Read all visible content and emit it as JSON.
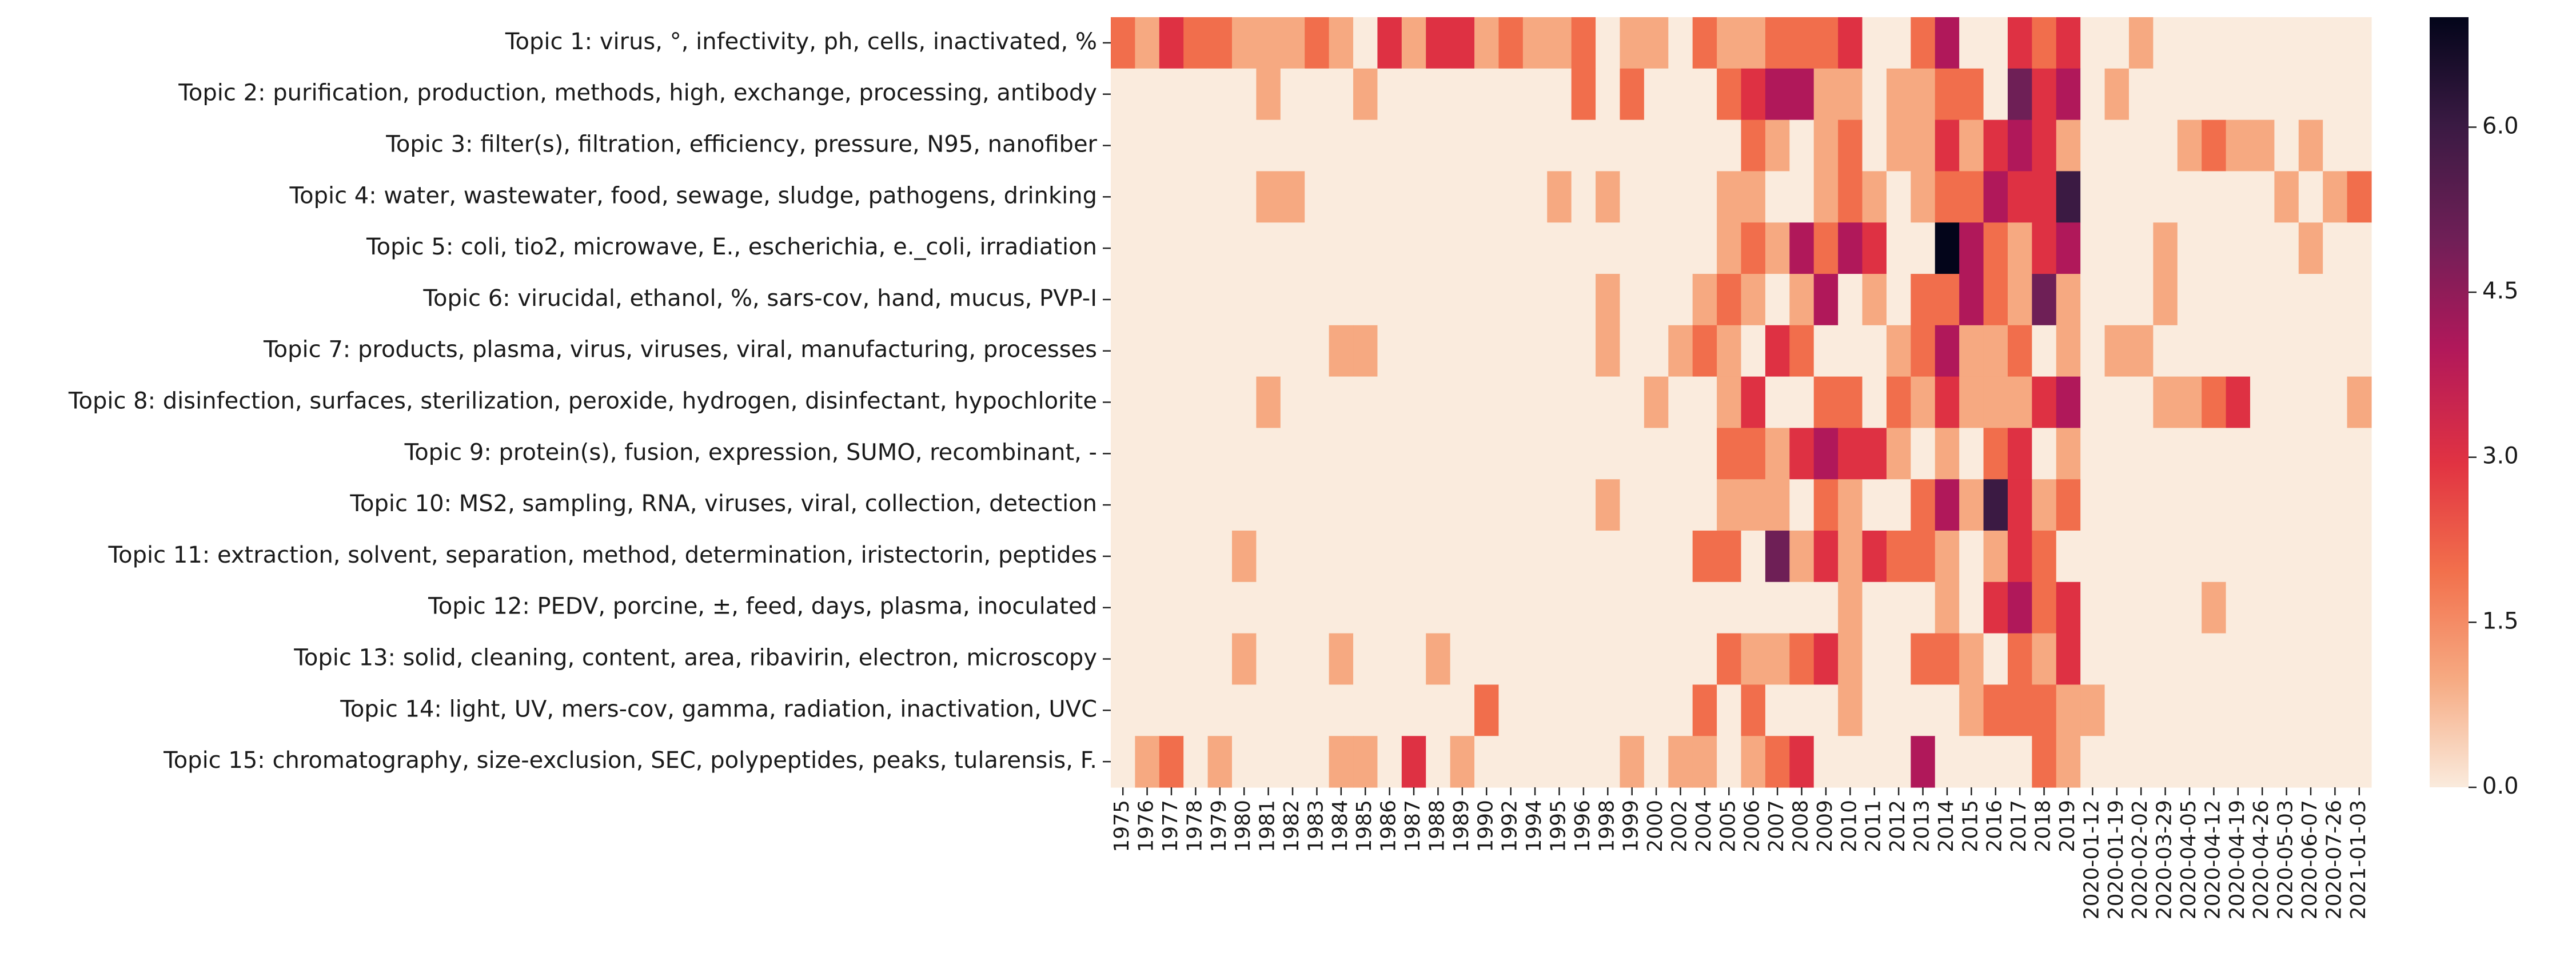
{
  "chart_data": {
    "type": "heatmap",
    "title": "",
    "xlabel": "",
    "ylabel": "",
    "y_categories": [
      "Topic 1: virus, °, infectivity, ph, cells, inactivated, %",
      "Topic 2: purification, production, methods, high, exchange, processing, antibody",
      "Topic 3: filter(s), filtration, efficiency, pressure, N95, nanofiber",
      "Topic 4: water, wastewater, food, sewage, sludge, pathogens, drinking",
      "Topic 5: coli, tio2, microwave, E., escherichia, e._coli, irradiation",
      "Topic 6: virucidal, ethanol, %, sars-cov, hand, mucus, PVP-I",
      "Topic 7: products, plasma, virus, viruses, viral, manufacturing, processes",
      "Topic 8: disinfection, surfaces, sterilization, peroxide, hydrogen, disinfectant, hypochlorite",
      "Topic 9: protein(s), fusion, expression, SUMO, recombinant, -",
      "Topic 10: MS2, sampling, RNA, viruses, viral, collection, detection",
      "Topic 11: extraction, solvent, separation, method, determination, iristectorin, peptides",
      "Topic 12: PEDV, porcine, ±, feed, days, plasma, inoculated",
      "Topic 13: solid, cleaning, content, area, ribavirin, electron, microscopy",
      "Topic 14: light, UV, mers-cov, gamma, radiation, inactivation, UVC",
      "Topic 15: chromatography, size-exclusion, SEC, polypeptides, peaks, tularensis, F."
    ],
    "x_categories": [
      "1975",
      "1976",
      "1977",
      "1978",
      "1979",
      "1980",
      "1981",
      "1982",
      "1983",
      "1984",
      "1985",
      "1986",
      "1987",
      "1988",
      "1989",
      "1990",
      "1992",
      "1994",
      "1995",
      "1996",
      "1998",
      "1999",
      "2000",
      "2002",
      "2004",
      "2005",
      "2006",
      "2007",
      "2008",
      "2009",
      "2010",
      "2011",
      "2012",
      "2013",
      "2014",
      "2015",
      "2016",
      "2017",
      "2018",
      "2019",
      "2020-01-12",
      "2020-01-19",
      "2020-02-02",
      "2020-03-29",
      "2020-04-05",
      "2020-04-12",
      "2020-04-19",
      "2020-04-26",
      "2020-05-03",
      "2020-06-07",
      "2020-07-26",
      "2021-01-03"
    ],
    "values": [
      [
        2,
        1,
        3,
        2,
        2,
        1,
        1,
        1,
        2,
        1,
        0,
        3,
        1,
        3,
        3,
        1,
        2,
        1,
        1,
        2,
        0,
        1,
        1,
        0,
        2,
        1,
        1,
        2,
        2,
        2,
        3,
        0,
        0,
        2,
        4,
        0,
        0,
        3,
        2,
        3,
        0,
        0,
        1,
        0,
        0,
        0,
        0,
        0,
        0,
        0,
        0,
        0
      ],
      [
        0,
        0,
        0,
        0,
        0,
        0,
        1,
        0,
        0,
        0,
        1,
        0,
        0,
        0,
        0,
        0,
        0,
        0,
        0,
        2,
        0,
        2,
        0,
        0,
        0,
        2,
        3,
        4,
        4,
        1,
        1,
        0,
        1,
        1,
        2,
        2,
        0,
        5,
        3,
        4,
        0,
        1,
        0,
        0,
        0,
        0,
        0,
        0,
        0,
        0,
        0,
        0
      ],
      [
        0,
        0,
        0,
        0,
        0,
        0,
        0,
        0,
        0,
        0,
        0,
        0,
        0,
        0,
        0,
        0,
        0,
        0,
        0,
        0,
        0,
        0,
        0,
        0,
        0,
        0,
        2,
        1,
        0,
        1,
        2,
        0,
        1,
        1,
        3,
        1,
        3,
        4,
        3,
        1,
        0,
        0,
        0,
        0,
        1,
        2,
        1,
        1,
        0,
        1,
        0,
        0
      ],
      [
        0,
        0,
        0,
        0,
        0,
        0,
        1,
        1,
        0,
        0,
        0,
        0,
        0,
        0,
        0,
        0,
        0,
        0,
        1,
        0,
        1,
        0,
        0,
        0,
        0,
        1,
        1,
        0,
        0,
        1,
        2,
        1,
        0,
        1,
        2,
        2,
        4,
        3,
        3,
        6,
        0,
        0,
        0,
        0,
        0,
        0,
        0,
        0,
        1,
        0,
        1,
        2
      ],
      [
        0,
        0,
        0,
        0,
        0,
        0,
        0,
        0,
        0,
        0,
        0,
        0,
        0,
        0,
        0,
        0,
        0,
        0,
        0,
        0,
        0,
        0,
        0,
        0,
        0,
        1,
        2,
        1,
        4,
        2,
        4,
        3,
        0,
        0,
        7,
        4,
        2,
        1,
        3,
        4,
        0,
        0,
        0,
        1,
        0,
        0,
        0,
        0,
        0,
        1,
        0,
        0
      ],
      [
        0,
        0,
        0,
        0,
        0,
        0,
        0,
        0,
        0,
        0,
        0,
        0,
        0,
        0,
        0,
        0,
        0,
        0,
        0,
        0,
        1,
        0,
        0,
        0,
        1,
        2,
        1,
        0,
        1,
        4,
        0,
        1,
        0,
        2,
        2,
        4,
        2,
        1,
        5,
        1,
        0,
        0,
        0,
        1,
        0,
        0,
        0,
        0,
        0,
        0,
        0,
        0
      ],
      [
        0,
        0,
        0,
        0,
        0,
        0,
        0,
        0,
        0,
        1,
        1,
        0,
        0,
        0,
        0,
        0,
        0,
        0,
        0,
        0,
        1,
        0,
        0,
        1,
        2,
        1,
        0,
        3,
        2,
        0,
        0,
        0,
        1,
        2,
        4,
        1,
        1,
        2,
        0,
        1,
        0,
        1,
        1,
        0,
        0,
        0,
        0,
        0,
        0,
        0,
        0,
        0
      ],
      [
        0,
        0,
        0,
        0,
        0,
        0,
        1,
        0,
        0,
        0,
        0,
        0,
        0,
        0,
        0,
        0,
        0,
        0,
        0,
        0,
        0,
        0,
        1,
        0,
        0,
        1,
        3,
        0,
        0,
        2,
        2,
        0,
        2,
        1,
        3,
        1,
        1,
        1,
        3,
        4,
        0,
        0,
        0,
        1,
        1,
        2,
        3,
        0,
        0,
        0,
        0,
        1
      ],
      [
        0,
        0,
        0,
        0,
        0,
        0,
        0,
        0,
        0,
        0,
        0,
        0,
        0,
        0,
        0,
        0,
        0,
        0,
        0,
        0,
        0,
        0,
        0,
        0,
        0,
        2,
        2,
        1,
        3,
        4,
        3,
        3,
        1,
        0,
        1,
        0,
        2,
        3,
        0,
        1,
        0,
        0,
        0,
        0,
        0,
        0,
        0,
        0,
        0,
        0,
        0,
        0
      ],
      [
        0,
        0,
        0,
        0,
        0,
        0,
        0,
        0,
        0,
        0,
        0,
        0,
        0,
        0,
        0,
        0,
        0,
        0,
        0,
        0,
        1,
        0,
        0,
        0,
        0,
        1,
        1,
        1,
        0,
        2,
        1,
        0,
        0,
        2,
        4,
        1,
        6,
        3,
        1,
        2,
        0,
        0,
        0,
        0,
        0,
        0,
        0,
        0,
        0,
        0,
        0,
        0
      ],
      [
        0,
        0,
        0,
        0,
        0,
        1,
        0,
        0,
        0,
        0,
        0,
        0,
        0,
        0,
        0,
        0,
        0,
        0,
        0,
        0,
        0,
        0,
        0,
        0,
        2,
        2,
        0,
        5,
        1,
        3,
        1,
        3,
        2,
        2,
        1,
        0,
        1,
        3,
        2,
        0,
        0,
        0,
        0,
        0,
        0,
        0,
        0,
        0,
        0,
        0,
        0,
        0
      ],
      [
        0,
        0,
        0,
        0,
        0,
        0,
        0,
        0,
        0,
        0,
        0,
        0,
        0,
        0,
        0,
        0,
        0,
        0,
        0,
        0,
        0,
        0,
        0,
        0,
        0,
        0,
        0,
        0,
        0,
        0,
        1,
        0,
        0,
        0,
        1,
        0,
        3,
        4,
        2,
        3,
        0,
        0,
        0,
        0,
        0,
        1,
        0,
        0,
        0,
        0,
        0,
        0
      ],
      [
        0,
        0,
        0,
        0,
        0,
        1,
        0,
        0,
        0,
        1,
        0,
        0,
        0,
        1,
        0,
        0,
        0,
        0,
        0,
        0,
        0,
        0,
        0,
        0,
        0,
        2,
        1,
        1,
        2,
        3,
        1,
        0,
        0,
        2,
        2,
        1,
        0,
        2,
        1,
        3,
        0,
        0,
        0,
        0,
        0,
        0,
        0,
        0,
        0,
        0,
        0,
        0
      ],
      [
        0,
        0,
        0,
        0,
        0,
        0,
        0,
        0,
        0,
        0,
        0,
        0,
        0,
        0,
        0,
        2,
        0,
        0,
        0,
        0,
        0,
        0,
        0,
        0,
        2,
        0,
        2,
        0,
        0,
        0,
        1,
        0,
        0,
        0,
        0,
        1,
        2,
        2,
        2,
        1,
        1,
        0,
        0,
        0,
        0,
        0,
        0,
        0,
        0,
        0,
        0,
        0
      ],
      [
        0,
        1,
        2,
        0,
        1,
        0,
        0,
        0,
        0,
        1,
        1,
        0,
        3,
        0,
        1,
        0,
        0,
        0,
        0,
        0,
        0,
        1,
        0,
        1,
        1,
        0,
        1,
        2,
        3,
        0,
        0,
        0,
        0,
        4,
        0,
        0,
        0,
        0,
        2,
        1,
        0,
        0,
        0,
        0,
        0,
        0,
        0,
        0,
        0,
        0,
        0,
        0
      ]
    ],
    "vmin": 0,
    "vmax": 7,
    "colorscale": "rocket_r",
    "colorbar_ticks": [
      0.0,
      1.5,
      3.0,
      4.5,
      6.0
    ],
    "colorbar_tick_labels": [
      "0.0",
      "1.5",
      "3.0",
      "4.5",
      "6.0"
    ]
  }
}
